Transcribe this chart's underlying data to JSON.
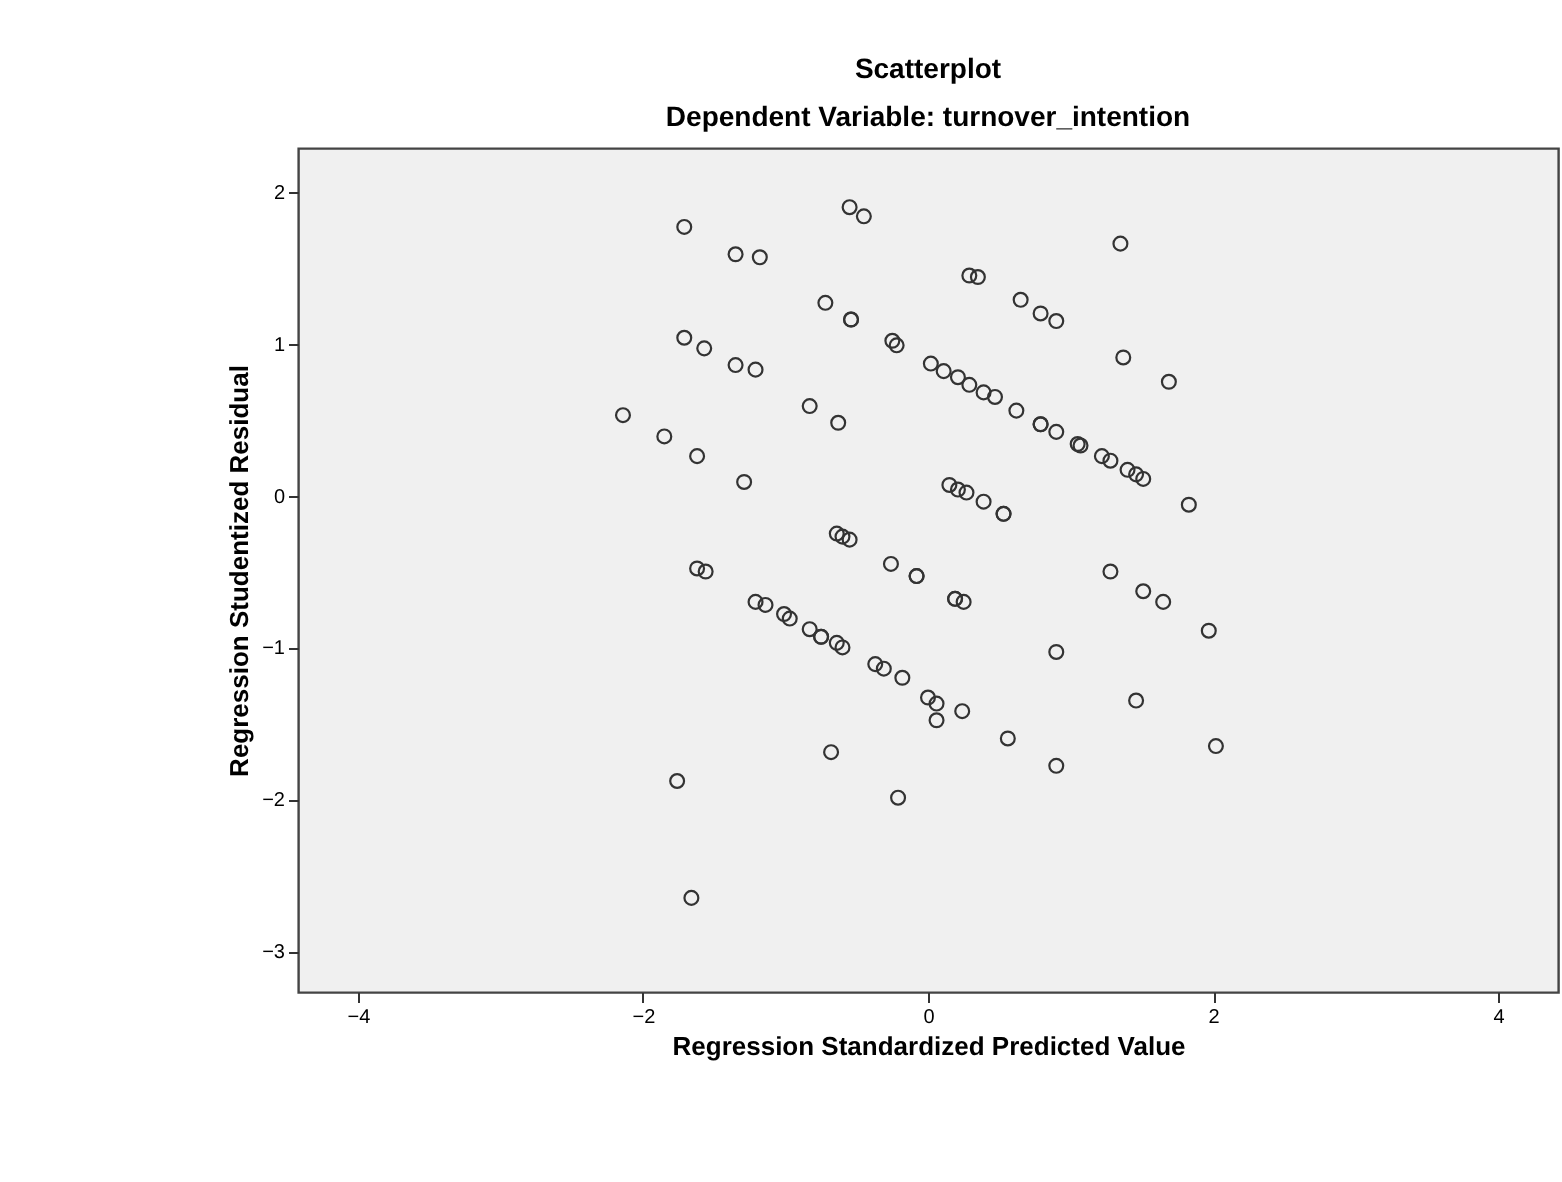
{
  "chart_data": {
    "type": "scatter",
    "title": "Scatterplot",
    "subtitle": "Dependent Variable: turnover_intention",
    "xlabel": "Regression Standardized Predicted Value",
    "ylabel": "Regression Studentized Residual",
    "xlim": [
      -4.42,
      4.42
    ],
    "xticks": [
      -4,
      -2,
      0,
      2,
      4
    ],
    "ylim": [
      -3.27,
      2.29
    ],
    "yticks": [
      -3,
      -2,
      -1,
      0,
      1,
      2
    ],
    "marker": "circle",
    "legend": false,
    "series": [
      {
        "color": "#333333",
        "x": [
          -1.71,
          -1.35,
          -1.18,
          -0.55,
          -0.45,
          -0.72,
          -0.54,
          -0.54,
          -0.25,
          -0.22,
          0.02,
          -1.71,
          -1.57,
          -1.35,
          -1.21,
          -2.14,
          -1.85,
          -1.62,
          -1.29,
          -0.83,
          -0.63,
          -0.64,
          -0.6,
          -0.55,
          1.35,
          0.29,
          0.35,
          0.65,
          0.79,
          0.9,
          1.37,
          1.69,
          0.11,
          0.21,
          0.29,
          0.39,
          0.47,
          0.62,
          0.79,
          0.79,
          0.9,
          1.05,
          1.07,
          1.22,
          1.28,
          1.4,
          1.46,
          1.51,
          1.83,
          0.15,
          0.21,
          0.27,
          0.39,
          0.53,
          0.53,
          -1.62,
          -1.56,
          -0.26,
          -0.08,
          -0.08,
          -1.21,
          -1.14,
          -1.01,
          -0.97,
          -0.83,
          -0.75,
          -0.75,
          -0.64,
          -0.6,
          -0.37,
          -0.31,
          -0.18,
          0.0,
          0.06,
          -0.68,
          -1.76,
          -0.21,
          -1.66,
          0.19,
          0.19,
          0.25,
          1.28,
          1.51,
          1.65,
          1.97,
          0.9,
          0.06,
          0.24,
          1.46,
          0.56,
          0.9,
          2.02
        ],
        "values": [
          1.77,
          1.59,
          1.57,
          1.9,
          1.84,
          1.27,
          1.16,
          1.16,
          1.02,
          0.99,
          0.87,
          1.04,
          0.97,
          0.86,
          0.83,
          0.53,
          0.39,
          0.26,
          0.09,
          0.59,
          0.48,
          -0.25,
          -0.27,
          -0.29,
          1.66,
          1.45,
          1.44,
          1.29,
          1.2,
          1.15,
          0.91,
          0.75,
          0.82,
          0.78,
          0.73,
          0.68,
          0.65,
          0.56,
          0.47,
          0.47,
          0.42,
          0.34,
          0.33,
          0.26,
          0.23,
          0.17,
          0.14,
          0.11,
          -0.06,
          0.07,
          0.04,
          0.02,
          -0.04,
          -0.12,
          -0.12,
          -0.48,
          -0.5,
          -0.45,
          -0.53,
          -0.53,
          -0.7,
          -0.72,
          -0.78,
          -0.81,
          -0.88,
          -0.93,
          -0.93,
          -0.97,
          -1.0,
          -1.11,
          -1.14,
          -1.2,
          -1.33,
          -1.48,
          -1.69,
          -1.88,
          -1.99,
          -2.65,
          -0.68,
          -0.68,
          -0.7,
          -0.5,
          -0.63,
          -0.7,
          -0.89,
          -1.03,
          -1.37,
          -1.42,
          -1.35,
          -1.6,
          -1.78,
          -1.65
        ]
      }
    ]
  }
}
